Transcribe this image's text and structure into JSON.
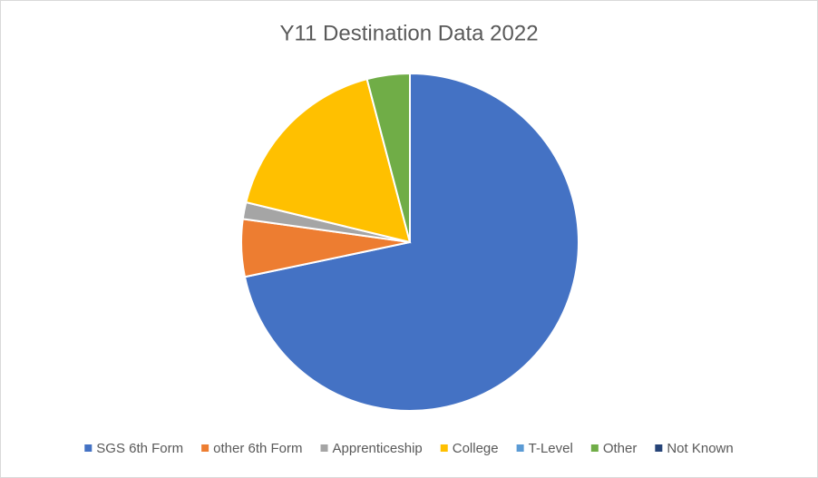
{
  "chart_data": {
    "type": "pie",
    "title": "Y11 Destination Data 2022",
    "categories": [
      "SGS 6th Form",
      "other 6th Form",
      "Apprenticeship",
      "College",
      "T-Level",
      "Other",
      "Not Known"
    ],
    "values": [
      71.7,
      5.5,
      1.6,
      17.1,
      0,
      4.1,
      0
    ],
    "colors": [
      "#4472c4",
      "#ed7d31",
      "#a5a5a5",
      "#ffc000",
      "#5b9bd5",
      "#70ad47",
      "#264478"
    ],
    "legend": "bottom"
  }
}
